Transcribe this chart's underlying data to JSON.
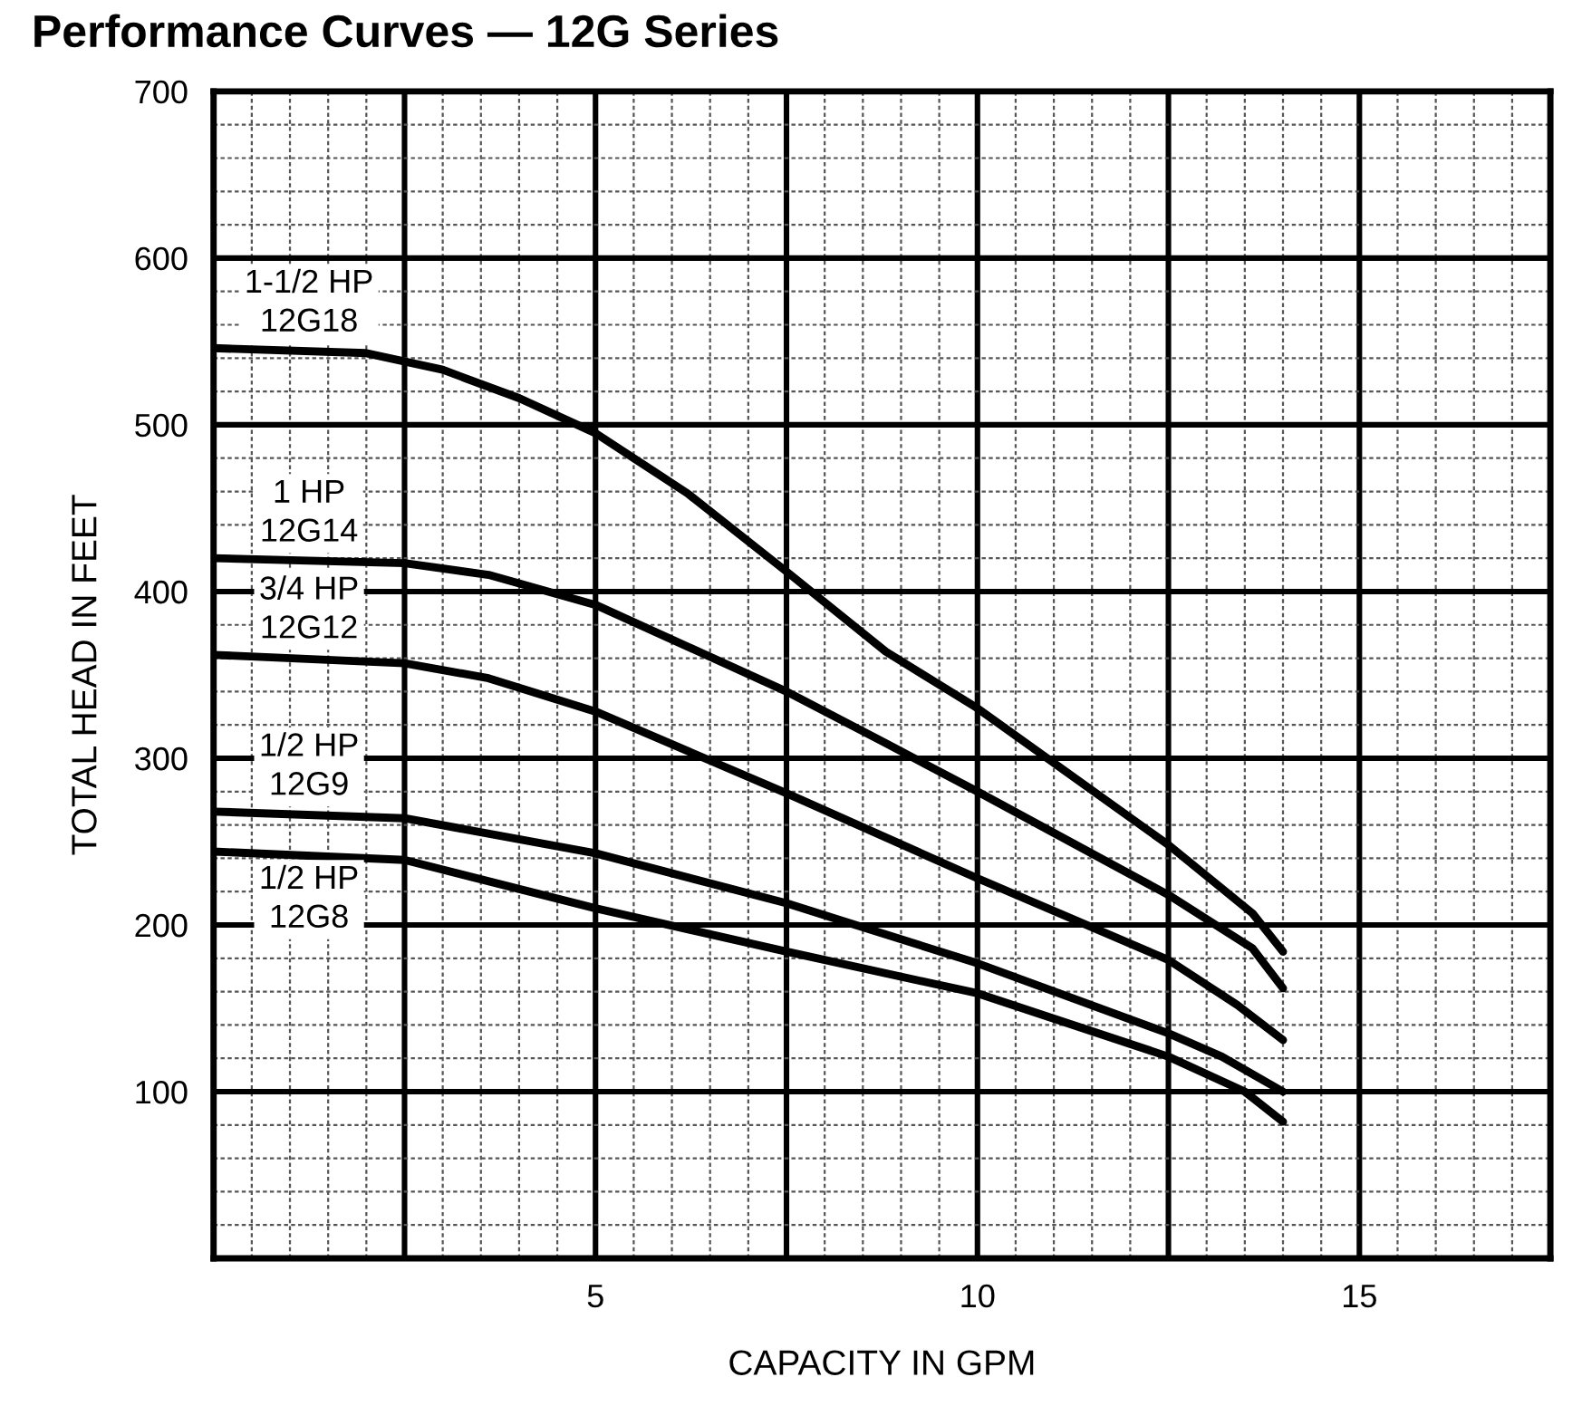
{
  "chart_data": {
    "type": "line",
    "title": "Performance Curves — 12G Series",
    "xlabel": "CAPACITY IN GPM",
    "ylabel": "TOTAL HEAD IN FEET",
    "xlim": [
      0,
      17.5
    ],
    "ylim": [
      0,
      700
    ],
    "xticks": [
      {
        "value": 2.5,
        "label": null
      },
      5,
      {
        "value": 7.5,
        "label": null
      },
      10,
      {
        "value": 12.5,
        "label": null
      },
      15
    ],
    "yticks": [
      {
        "value": 0,
        "label": null
      },
      100,
      200,
      300,
      400,
      500,
      600,
      700
    ],
    "grid": true,
    "legend": false,
    "marker": "none",
    "line_style": "solid",
    "series": [
      {
        "name": "1-1/2 HP\n12G18",
        "color": "#000000",
        "x": [
          0,
          2.0,
          3.0,
          4.0,
          5.0,
          6.2,
          7.5,
          8.8,
          10,
          12.5,
          13.6,
          14.0
        ],
        "values": [
          546,
          543,
          533,
          516,
          495,
          459,
          412,
          364,
          330,
          248,
          207,
          184
        ]
      },
      {
        "name": "1 HP\n12G14",
        "color": "#000000",
        "x": [
          0,
          2.5,
          3.6,
          5,
          7.5,
          8.8,
          10,
          12.5,
          13.6,
          14
        ],
        "values": [
          420,
          417,
          410,
          392,
          340,
          309,
          280,
          218,
          186,
          162
        ]
      },
      {
        "name": "3/4 HP\n12G12",
        "color": "#000000",
        "x": [
          0,
          2.5,
          3.6,
          5,
          7.5,
          10,
          12.5,
          13.4,
          14
        ],
        "values": [
          362,
          357,
          348,
          328,
          279,
          228,
          179,
          152,
          131
        ]
      },
      {
        "name": "1/2 HP\n12G9",
        "color": "#000000",
        "x": [
          0,
          2.5,
          5,
          7.5,
          10,
          12.5,
          13.2,
          14
        ],
        "values": [
          268,
          264,
          243,
          213,
          177,
          135,
          121,
          100
        ]
      },
      {
        "name": "1/2 HP\n12G8",
        "color": "#000000",
        "x": [
          0,
          2.5,
          5,
          7.5,
          10,
          12.5,
          13.5,
          14
        ],
        "values": [
          244,
          239,
          210,
          184,
          159,
          121,
          100,
          82
        ]
      }
    ]
  }
}
